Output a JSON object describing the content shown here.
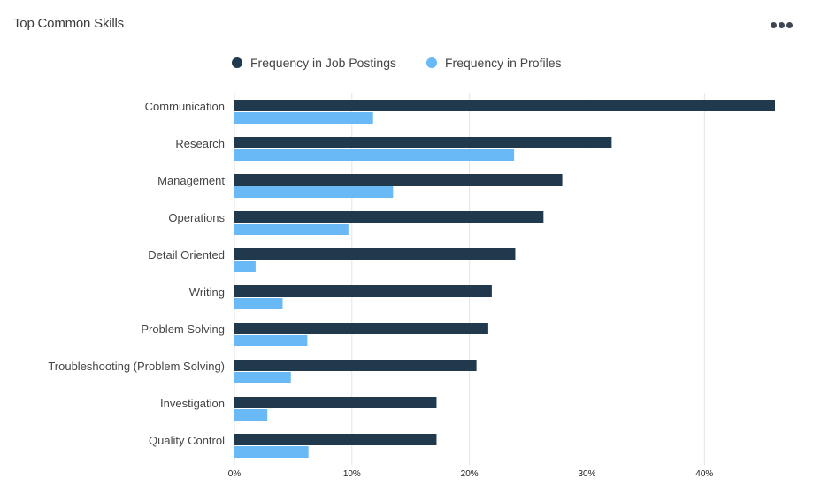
{
  "header": {
    "title": "Top Common Skills",
    "menu_icon": "more-horizontal-icon"
  },
  "colors": {
    "postings": "#20394d",
    "profiles": "#68b9f5",
    "grid": "#e3e3e3"
  },
  "chart_data": {
    "type": "bar",
    "orientation": "horizontal",
    "title": "Top Common Skills",
    "legend_position": "top",
    "grid": true,
    "xlim": [
      0,
      46
    ],
    "x_ticks": [
      0,
      10,
      20,
      30,
      40
    ],
    "x_tick_labels": [
      "0%",
      "10%",
      "20%",
      "30%",
      "40%"
    ],
    "categories": [
      "Communication",
      "Research",
      "Management",
      "Operations",
      "Detail Oriented",
      "Writing",
      "Problem Solving",
      "Troubleshooting (Problem Solving)",
      "Investigation",
      "Quality Control"
    ],
    "series": [
      {
        "name": "Frequency in Job Postings",
        "values": [
          46,
          32.1,
          27.9,
          26.3,
          23.9,
          21.9,
          21.6,
          20.6,
          17.2,
          17.2
        ]
      },
      {
        "name": "Frequency in Profiles",
        "values": [
          11.8,
          23.8,
          13.5,
          9.7,
          1.8,
          4.1,
          6.2,
          4.8,
          2.8,
          6.3
        ]
      }
    ]
  }
}
